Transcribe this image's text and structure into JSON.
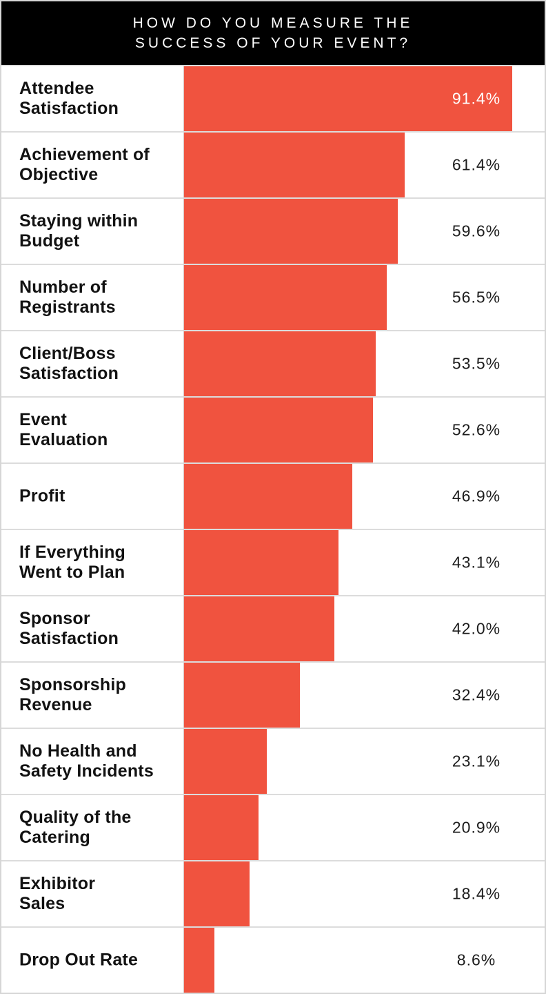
{
  "header": {
    "lines": [
      "HOW DO YOU MEASURE THE",
      "SUCCESS OF YOUR EVENT?"
    ]
  },
  "colors": {
    "bar": "#f0533f",
    "header_bg": "#000000",
    "header_text": "#ffffff",
    "separator": "#dcdcdc",
    "value_text": "#1c1c1c",
    "value_text_inside_bar": "#ffffff"
  },
  "chart_data": {
    "type": "bar",
    "orientation": "horizontal",
    "title": "HOW DO YOU MEASURE THE SUCCESS OF YOUR EVENT?",
    "xlabel": "",
    "ylabel": "",
    "xlim": [
      0,
      100
    ],
    "grid": false,
    "legend": false,
    "categories": [
      "Attendee Satisfaction",
      "Achievement of Objective",
      "Staying within Budget",
      "Number of Registrants",
      "Client/Boss Satisfaction",
      "Event Evaluation",
      "Profit",
      "If Everything Went to Plan",
      "Sponsor Satisfaction",
      "Sponsorship Revenue",
      "No Health and Safety Incidents",
      "Quality of the Catering",
      "Exhibitor Sales",
      "Drop Out Rate"
    ],
    "values": [
      91.4,
      61.4,
      59.6,
      56.5,
      53.5,
      52.6,
      46.9,
      43.1,
      42.0,
      32.4,
      23.1,
      20.9,
      18.4,
      8.6
    ]
  },
  "rows": [
    {
      "label_lines": [
        "Attendee",
        "Satisfaction"
      ],
      "value": 91.4,
      "pct": "91.4%",
      "label_inside_bar": true
    },
    {
      "label_lines": [
        "Achievement of",
        "Objective"
      ],
      "value": 61.4,
      "pct": "61.4%",
      "label_inside_bar": false
    },
    {
      "label_lines": [
        "Staying within",
        "Budget"
      ],
      "value": 59.6,
      "pct": "59.6%",
      "label_inside_bar": false
    },
    {
      "label_lines": [
        "Number of",
        "Registrants"
      ],
      "value": 56.5,
      "pct": "56.5%",
      "label_inside_bar": false
    },
    {
      "label_lines": [
        "Client/Boss",
        "Satisfaction"
      ],
      "value": 53.5,
      "pct": "53.5%",
      "label_inside_bar": false
    },
    {
      "label_lines": [
        "Event",
        "Evaluation"
      ],
      "value": 52.6,
      "pct": "52.6%",
      "label_inside_bar": false
    },
    {
      "label_lines": [
        "Profit"
      ],
      "value": 46.9,
      "pct": "46.9%",
      "label_inside_bar": false
    },
    {
      "label_lines": [
        "If Everything",
        "Went to Plan"
      ],
      "value": 43.1,
      "pct": "43.1%",
      "label_inside_bar": false
    },
    {
      "label_lines": [
        "Sponsor",
        "Satisfaction"
      ],
      "value": 42.0,
      "pct": "42.0%",
      "label_inside_bar": false
    },
    {
      "label_lines": [
        "Sponsorship",
        "Revenue"
      ],
      "value": 32.4,
      "pct": "32.4%",
      "label_inside_bar": false
    },
    {
      "label_lines": [
        "No Health and",
        "Safety Incidents"
      ],
      "value": 23.1,
      "pct": "23.1%",
      "label_inside_bar": false
    },
    {
      "label_lines": [
        "Quality of the",
        "Catering"
      ],
      "value": 20.9,
      "pct": "20.9%",
      "label_inside_bar": false
    },
    {
      "label_lines": [
        "Exhibitor",
        "Sales"
      ],
      "value": 18.4,
      "pct": "18.4%",
      "label_inside_bar": false
    },
    {
      "label_lines": [
        "Drop Out Rate"
      ],
      "value": 8.6,
      "pct": "8.6%",
      "label_inside_bar": false
    }
  ]
}
